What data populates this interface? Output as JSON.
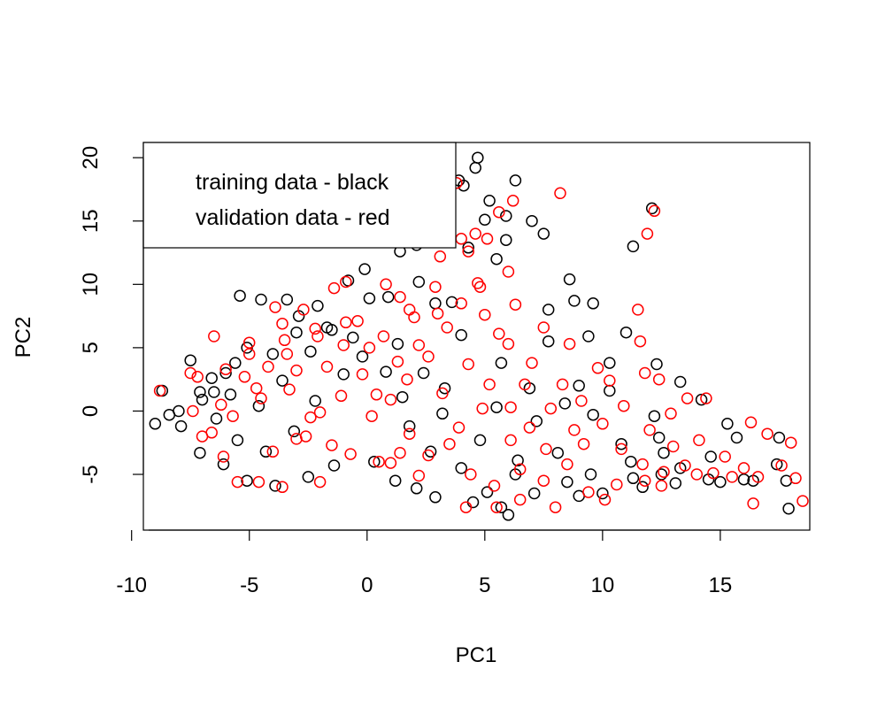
{
  "chart_data": {
    "type": "scatter",
    "title": "",
    "xlabel": "PC1",
    "ylabel": "PC2",
    "xlim": [
      -9.5,
      18.8
    ],
    "ylim": [
      -9.4,
      21.2
    ],
    "x_ticks": [
      "-10",
      "-5",
      "0",
      "5",
      "10",
      "15"
    ],
    "y_ticks": [
      "-5",
      "0",
      "5",
      "10",
      "15",
      "20"
    ],
    "legend": {
      "placement": "top-left",
      "lines": [
        "training data - black",
        "validation data - red"
      ]
    },
    "series": [
      {
        "color": "#000000",
        "points": [
          [
            -9.0,
            -1.0
          ],
          [
            -8.7,
            1.6
          ],
          [
            -8.0,
            0.0
          ],
          [
            -7.5,
            4.0
          ],
          [
            -7.1,
            1.5
          ],
          [
            -6.5,
            1.5
          ],
          [
            -6.0,
            3.0
          ],
          [
            -5.6,
            3.8
          ],
          [
            -5.4,
            9.1
          ],
          [
            -5.1,
            5.0
          ],
          [
            -4.5,
            8.8
          ],
          [
            -3.4,
            8.8
          ],
          [
            -2.9,
            7.5
          ],
          [
            -2.1,
            8.3
          ],
          [
            -1.7,
            6.6
          ],
          [
            -0.8,
            10.3
          ],
          [
            -0.1,
            11.2
          ],
          [
            0.1,
            8.9
          ],
          [
            1.4,
            12.6
          ],
          [
            2.1,
            13.1
          ],
          [
            3.0,
            19.2
          ],
          [
            3.9,
            18.2
          ],
          [
            4.1,
            17.8
          ],
          [
            4.6,
            19.2
          ],
          [
            4.7,
            20.0
          ],
          [
            5.2,
            16.6
          ],
          [
            5.9,
            15.4
          ],
          [
            5.9,
            13.5
          ],
          [
            5.5,
            12.0
          ],
          [
            6.3,
            18.2
          ],
          [
            7.0,
            15.0
          ],
          [
            7.5,
            14.0
          ],
          [
            8.6,
            10.4
          ],
          [
            8.8,
            8.7
          ],
          [
            9.6,
            8.5
          ],
          [
            11.3,
            13.0
          ],
          [
            12.1,
            16.0
          ],
          [
            11.0,
            6.2
          ],
          [
            12.3,
            3.7
          ],
          [
            13.3,
            2.3
          ],
          [
            14.2,
            0.9
          ],
          [
            15.3,
            -1.0
          ],
          [
            15.7,
            -2.1
          ],
          [
            17.5,
            -2.1
          ],
          [
            17.4,
            -4.2
          ],
          [
            17.8,
            -5.5
          ],
          [
            17.9,
            -7.7
          ],
          [
            16.4,
            -5.5
          ],
          [
            14.5,
            -5.4
          ],
          [
            12.5,
            -5.0
          ],
          [
            11.3,
            -5.3
          ],
          [
            10.0,
            -6.5
          ],
          [
            8.5,
            -5.6
          ],
          [
            7.1,
            -6.5
          ],
          [
            6.0,
            -8.2
          ],
          [
            5.7,
            -7.6
          ],
          [
            4.5,
            -7.2
          ],
          [
            2.9,
            -6.8
          ],
          [
            2.1,
            -6.1
          ],
          [
            1.2,
            -5.5
          ],
          [
            0.3,
            -4.0
          ],
          [
            -1.4,
            -4.3
          ],
          [
            -2.5,
            -5.2
          ],
          [
            -3.9,
            -5.9
          ],
          [
            -5.1,
            -5.5
          ],
          [
            -6.1,
            -4.2
          ],
          [
            -7.1,
            -3.3
          ],
          [
            -7.9,
            -1.2
          ],
          [
            -8.4,
            -0.3
          ],
          [
            5.5,
            0.3
          ],
          [
            6.4,
            -3.9
          ],
          [
            3.3,
            1.8
          ],
          [
            2.4,
            3.0
          ],
          [
            6.9,
            1.8
          ],
          [
            10.8,
            -2.6
          ],
          [
            12.2,
            -0.4
          ],
          [
            12.6,
            -3.3
          ],
          [
            13.3,
            -4.5
          ],
          [
            14.6,
            -3.6
          ],
          [
            9.6,
            -0.3
          ],
          [
            9.0,
            2.0
          ],
          [
            7.7,
            5.5
          ],
          [
            3.6,
            8.6
          ],
          [
            2.9,
            8.5
          ],
          [
            4.0,
            6.0
          ],
          [
            5.7,
            3.8
          ],
          [
            1.3,
            5.3
          ],
          [
            0.8,
            3.1
          ],
          [
            -0.2,
            4.3
          ],
          [
            -1.0,
            2.9
          ],
          [
            -2.2,
            0.8
          ],
          [
            -3.1,
            -1.6
          ],
          [
            -4.3,
            -3.2
          ],
          [
            -5.5,
            -2.3
          ],
          [
            -6.4,
            -0.6
          ],
          [
            -7.0,
            0.9
          ],
          [
            -5.8,
            1.3
          ],
          [
            -4.6,
            0.4
          ],
          [
            -3.6,
            2.4
          ],
          [
            -2.4,
            4.7
          ],
          [
            -1.5,
            6.4
          ],
          [
            1.8,
            -1.2
          ],
          [
            2.7,
            -3.2
          ],
          [
            4.0,
            -4.5
          ],
          [
            5.1,
            -6.4
          ],
          [
            6.3,
            -5.0
          ],
          [
            8.1,
            -3.3
          ],
          [
            9.5,
            -5.0
          ],
          [
            11.2,
            -4.0
          ],
          [
            12.4,
            -2.1
          ],
          [
            10.3,
            1.6
          ],
          [
            8.4,
            0.6
          ],
          [
            7.2,
            -0.8
          ],
          [
            4.8,
            -2.3
          ],
          [
            3.2,
            -0.2
          ],
          [
            1.5,
            1.1
          ],
          [
            -0.6,
            5.8
          ],
          [
            -3.0,
            6.2
          ],
          [
            -4.0,
            4.5
          ],
          [
            -6.6,
            2.6
          ],
          [
            13.1,
            -5.7
          ],
          [
            15.0,
            -5.6
          ],
          [
            16.0,
            -5.4
          ],
          [
            11.7,
            -6.0
          ],
          [
            9.0,
            -6.7
          ],
          [
            2.2,
            10.2
          ],
          [
            0.9,
            9.0
          ],
          [
            4.3,
            12.9
          ],
          [
            5.0,
            15.1
          ],
          [
            7.7,
            8.0
          ],
          [
            9.4,
            5.9
          ],
          [
            10.3,
            3.8
          ]
        ]
      },
      {
        "color": "#ff0000",
        "points": [
          [
            -8.8,
            1.6
          ],
          [
            -7.5,
            3.0
          ],
          [
            -6.5,
            5.9
          ],
          [
            -5.5,
            -5.6
          ],
          [
            -5.0,
            4.5
          ],
          [
            -4.5,
            1.0
          ],
          [
            -3.9,
            8.2
          ],
          [
            -3.5,
            5.6
          ],
          [
            -3.0,
            3.2
          ],
          [
            -2.6,
            -2.0
          ],
          [
            -2.1,
            5.9
          ],
          [
            -1.4,
            9.7
          ],
          [
            -0.9,
            10.2
          ],
          [
            -0.4,
            7.1
          ],
          [
            0.4,
            1.3
          ],
          [
            0.5,
            -4.0
          ],
          [
            0.8,
            10.0
          ],
          [
            1.4,
            9.0
          ],
          [
            2.0,
            7.4
          ],
          [
            3.1,
            12.2
          ],
          [
            3.8,
            18.0
          ],
          [
            4.0,
            13.6
          ],
          [
            4.3,
            12.6
          ],
          [
            4.6,
            14.0
          ],
          [
            4.7,
            10.1
          ],
          [
            5.1,
            13.6
          ],
          [
            5.6,
            15.7
          ],
          [
            6.2,
            16.6
          ],
          [
            6.0,
            11.0
          ],
          [
            8.2,
            17.2
          ],
          [
            11.9,
            14.0
          ],
          [
            12.2,
            15.8
          ],
          [
            11.5,
            8.0
          ],
          [
            11.6,
            5.5
          ],
          [
            11.8,
            3.0
          ],
          [
            12.4,
            2.5
          ],
          [
            13.6,
            1.0
          ],
          [
            14.4,
            1.0
          ],
          [
            16.3,
            -0.9
          ],
          [
            17.0,
            -1.8
          ],
          [
            18.0,
            -2.5
          ],
          [
            18.2,
            -5.3
          ],
          [
            18.5,
            -7.1
          ],
          [
            16.4,
            -7.3
          ],
          [
            15.5,
            -5.2
          ],
          [
            14.0,
            -5.0
          ],
          [
            12.5,
            -5.9
          ],
          [
            10.1,
            -7.0
          ],
          [
            8.0,
            -7.6
          ],
          [
            6.5,
            -7.0
          ],
          [
            5.5,
            -7.6
          ],
          [
            4.2,
            -7.6
          ],
          [
            2.2,
            -5.1
          ],
          [
            1.0,
            -4.1
          ],
          [
            -0.7,
            -3.4
          ],
          [
            -2.0,
            -5.6
          ],
          [
            -3.6,
            -6.0
          ],
          [
            -4.6,
            -5.6
          ],
          [
            -6.1,
            -3.6
          ],
          [
            -7.0,
            -2.0
          ],
          [
            -7.4,
            0.0
          ],
          [
            -6.2,
            0.5
          ],
          [
            -5.2,
            2.7
          ],
          [
            -4.2,
            3.5
          ],
          [
            -3.3,
            1.7
          ],
          [
            -2.4,
            -0.5
          ],
          [
            -1.7,
            3.5
          ],
          [
            -1.0,
            5.2
          ],
          [
            -0.2,
            2.9
          ],
          [
            1.0,
            0.9
          ],
          [
            1.7,
            2.5
          ],
          [
            2.6,
            4.3
          ],
          [
            3.4,
            6.6
          ],
          [
            4.3,
            3.7
          ],
          [
            5.2,
            2.1
          ],
          [
            6.1,
            0.3
          ],
          [
            6.9,
            -1.3
          ],
          [
            7.6,
            -3.0
          ],
          [
            8.5,
            -4.2
          ],
          [
            9.2,
            -2.6
          ],
          [
            10.0,
            -1.0
          ],
          [
            10.8,
            -3.0
          ],
          [
            11.7,
            -4.2
          ],
          [
            12.6,
            -4.8
          ],
          [
            13.5,
            -4.3
          ],
          [
            14.7,
            -4.9
          ],
          [
            16.6,
            -5.2
          ],
          [
            17.6,
            -4.3
          ],
          [
            9.1,
            0.8
          ],
          [
            8.3,
            2.1
          ],
          [
            7.0,
            3.8
          ],
          [
            6.0,
            5.3
          ],
          [
            5.0,
            7.6
          ],
          [
            4.0,
            8.5
          ],
          [
            3.0,
            7.7
          ],
          [
            2.2,
            5.2
          ],
          [
            1.3,
            3.9
          ],
          [
            0.1,
            5.0
          ],
          [
            -0.9,
            7.0
          ],
          [
            -2.2,
            6.5
          ],
          [
            -3.4,
            4.5
          ],
          [
            -4.7,
            1.8
          ],
          [
            -5.7,
            -0.4
          ],
          [
            -6.6,
            -1.7
          ],
          [
            -4.0,
            -3.2
          ],
          [
            -3.0,
            -2.2
          ],
          [
            -2.0,
            -0.1
          ],
          [
            -1.1,
            1.2
          ],
          [
            0.2,
            -0.4
          ],
          [
            1.8,
            -1.8
          ],
          [
            2.6,
            -3.5
          ],
          [
            3.5,
            -2.6
          ],
          [
            4.4,
            -5.0
          ],
          [
            5.4,
            -5.9
          ],
          [
            6.5,
            -4.6
          ],
          [
            7.5,
            -5.5
          ],
          [
            9.4,
            -6.4
          ],
          [
            10.6,
            -5.8
          ],
          [
            11.8,
            -5.5
          ],
          [
            3.9,
            -1.3
          ],
          [
            4.9,
            0.2
          ],
          [
            6.7,
            2.1
          ],
          [
            7.8,
            0.2
          ],
          [
            8.8,
            -1.5
          ],
          [
            10.3,
            2.4
          ],
          [
            10.9,
            0.4
          ],
          [
            12.0,
            -1.5
          ],
          [
            13.0,
            -2.8
          ],
          [
            9.8,
            3.4
          ],
          [
            8.6,
            5.3
          ],
          [
            7.5,
            6.6
          ],
          [
            6.3,
            8.4
          ],
          [
            5.6,
            6.1
          ],
          [
            4.8,
            9.8
          ],
          [
            2.9,
            9.8
          ],
          [
            1.8,
            8.0
          ],
          [
            -5.0,
            5.4
          ],
          [
            -6.0,
            3.3
          ],
          [
            -7.2,
            2.7
          ],
          [
            -3.6,
            6.9
          ],
          [
            -2.7,
            8.0
          ],
          [
            15.2,
            -3.6
          ],
          [
            16.0,
            -4.5
          ],
          [
            14.1,
            -2.3
          ],
          [
            12.9,
            -0.2
          ],
          [
            0.7,
            5.9
          ],
          [
            -1.5,
            -2.7
          ],
          [
            1.4,
            -3.3
          ],
          [
            3.2,
            1.4
          ],
          [
            6.1,
            -2.3
          ]
        ]
      }
    ]
  }
}
